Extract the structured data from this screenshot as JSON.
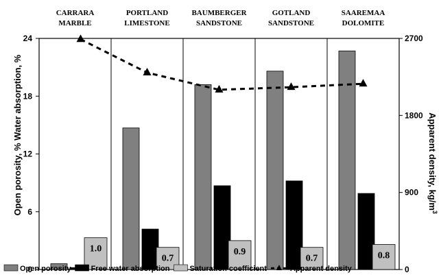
{
  "chart_data": {
    "type": "bar",
    "categories": [
      [
        "CARRARA",
        "MARBLE"
      ],
      [
        "PORTLAND",
        "LIMESTONE"
      ],
      [
        "BAUMBERGER",
        "SANDSTONE"
      ],
      [
        "GOTLAND",
        "SANDSTONE"
      ],
      [
        "SAAREMAA",
        "DOLOMITE"
      ]
    ],
    "series": [
      {
        "name": "Open porosity",
        "axis": "left",
        "color": "#808080",
        "values": [
          0.6,
          14.7,
          19.2,
          20.6,
          22.7
        ]
      },
      {
        "name": "Free water absorption",
        "axis": "left",
        "color": "#000000",
        "values": [
          0.2,
          4.2,
          8.7,
          9.2,
          7.9
        ]
      },
      {
        "name": "Saturation coefficient",
        "axis": "left",
        "color": "#c0c0c0",
        "values": [
          3.3,
          2.3,
          3.0,
          2.3,
          2.6
        ],
        "labels": [
          "1.0",
          "0.7",
          "0.9",
          "0.7",
          "0.8"
        ]
      },
      {
        "name": "Apparent density",
        "axis": "right",
        "type": "line",
        "color": "#000000",
        "values": [
          2690,
          2300,
          2100,
          2130,
          2170
        ]
      }
    ],
    "ylabel": "Open porosity, %  Water absorption, %",
    "y2label": "Apparent density, kg/m",
    "y2label_sup": "3",
    "ylim": [
      0,
      24
    ],
    "yticks": [
      "0",
      "6",
      "12",
      "18",
      "24"
    ],
    "y2lim": [
      0,
      2700
    ],
    "y2ticks": [
      "0",
      "900",
      "1800",
      "2700"
    ],
    "legend_position": "bottom"
  }
}
